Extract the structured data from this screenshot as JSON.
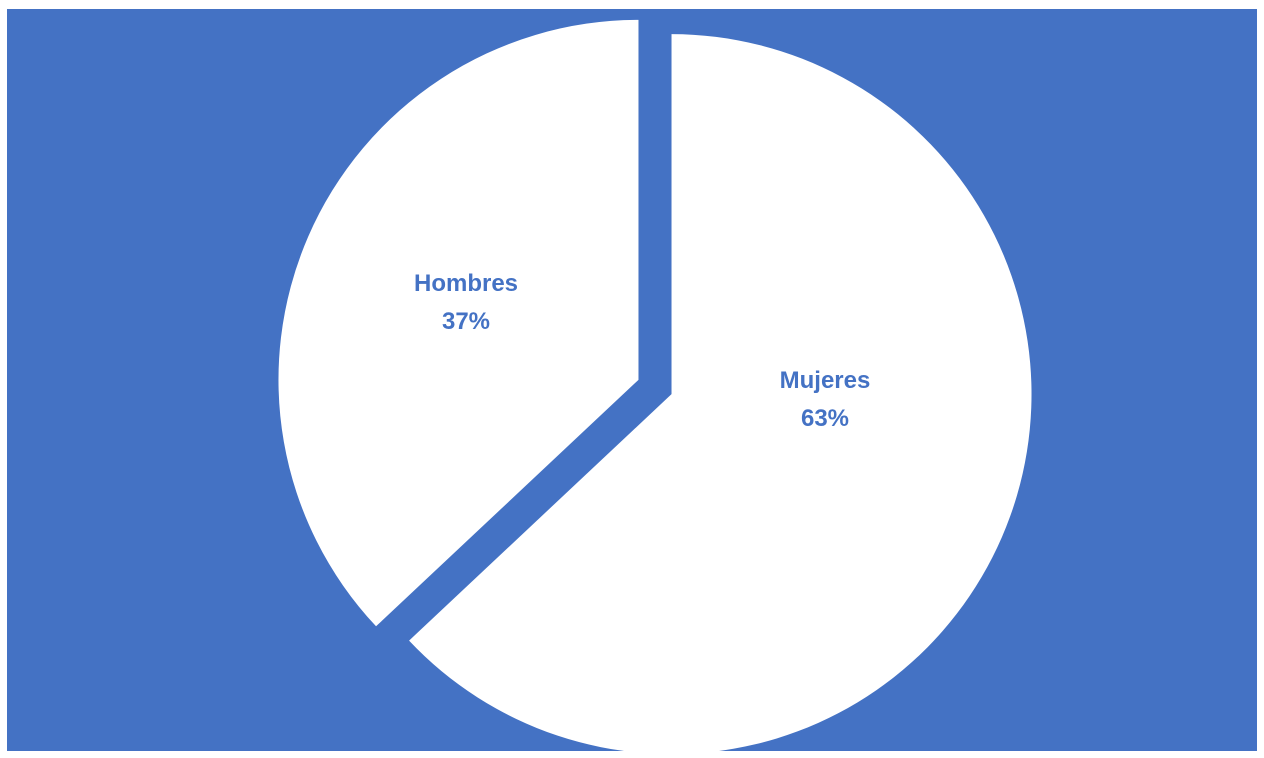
{
  "chart_data": {
    "type": "pie",
    "title": "",
    "slices": [
      {
        "label": "Hombres",
        "value": 37,
        "value_label": "37%"
      },
      {
        "label": "Mujeres",
        "value": 63,
        "value_label": "63%"
      }
    ],
    "colors": {
      "background": "#4472C4",
      "slice_fill": "#FFFFFF",
      "label_text": "#4472C4"
    },
    "legend": "none",
    "labels_inside_slices": true,
    "exploded": true
  }
}
